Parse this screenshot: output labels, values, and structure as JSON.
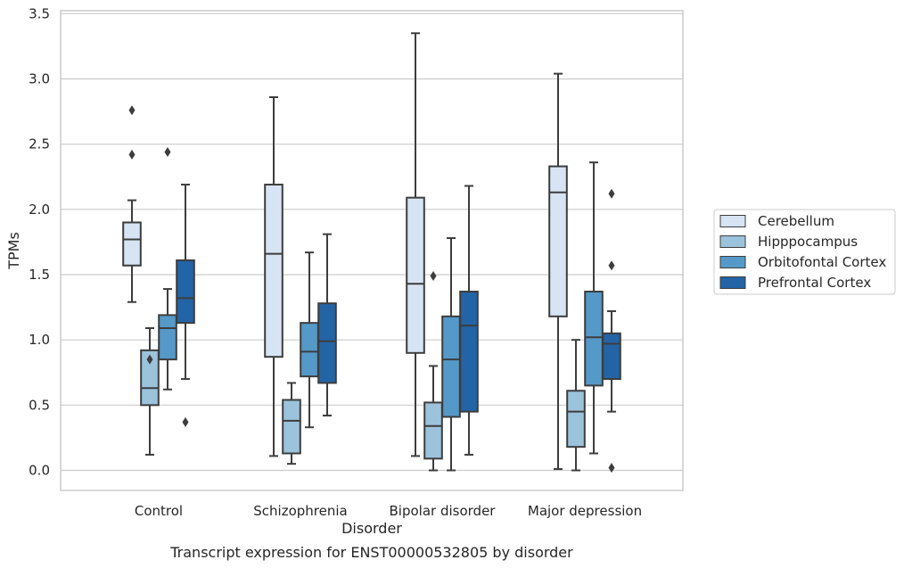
{
  "chart_data": {
    "type": "box",
    "xlabel": "Disorder",
    "ylabel": "TPMs",
    "caption": "Transcript expression for ENST00000532805 by disorder",
    "ylim": [
      -0.15,
      3.52
    ],
    "yticks": [
      "0.0",
      "0.5",
      "1.0",
      "1.5",
      "2.0",
      "2.5",
      "3.0",
      "3.5"
    ],
    "grid": "horizontal",
    "legend_position": "right",
    "categories": [
      "Control",
      "Schizophrenia",
      "Bipolar disorder",
      "Major depression"
    ],
    "series": [
      {
        "name": "Cerebellum",
        "color": "#d6e4f3",
        "boxes": [
          {
            "whisker_low": 1.29,
            "q1": 1.57,
            "median": 1.77,
            "q3": 1.9,
            "whisker_high": 2.07,
            "outliers": [
              2.76,
              2.42
            ]
          },
          {
            "whisker_low": 0.11,
            "q1": 0.87,
            "median": 1.66,
            "q3": 2.19,
            "whisker_high": 2.86,
            "outliers": []
          },
          {
            "whisker_low": 0.11,
            "q1": 0.9,
            "median": 1.43,
            "q3": 2.09,
            "whisker_high": 3.35,
            "outliers": []
          },
          {
            "whisker_low": 0.01,
            "q1": 1.18,
            "median": 2.13,
            "q3": 2.33,
            "whisker_high": 3.04,
            "outliers": []
          }
        ]
      },
      {
        "name": "Hipppocampus",
        "color": "#9cc3dc",
        "boxes": [
          {
            "whisker_low": 0.12,
            "q1": 0.5,
            "median": 0.63,
            "q3": 0.92,
            "whisker_high": 1.09,
            "outliers": [
              0.85
            ]
          },
          {
            "whisker_low": 0.05,
            "q1": 0.13,
            "median": 0.38,
            "q3": 0.54,
            "whisker_high": 0.67,
            "outliers": []
          },
          {
            "whisker_low": 0.0,
            "q1": 0.09,
            "median": 0.34,
            "q3": 0.52,
            "whisker_high": 0.8,
            "outliers": [
              1.49
            ]
          },
          {
            "whisker_low": 0.0,
            "q1": 0.18,
            "median": 0.45,
            "q3": 0.61,
            "whisker_high": 1.0,
            "outliers": []
          }
        ]
      },
      {
        "name": "Orbitofontal Cortex",
        "color": "#5599c8",
        "boxes": [
          {
            "whisker_low": 0.62,
            "q1": 0.85,
            "median": 1.09,
            "q3": 1.19,
            "whisker_high": 1.39,
            "outliers": [
              2.44
            ]
          },
          {
            "whisker_low": 0.33,
            "q1": 0.72,
            "median": 0.91,
            "q3": 1.13,
            "whisker_high": 1.67,
            "outliers": []
          },
          {
            "whisker_low": 0.0,
            "q1": 0.41,
            "median": 0.85,
            "q3": 1.18,
            "whisker_high": 1.78,
            "outliers": []
          },
          {
            "whisker_low": 0.13,
            "q1": 0.65,
            "median": 1.02,
            "q3": 1.37,
            "whisker_high": 2.36,
            "outliers": []
          }
        ]
      },
      {
        "name": "Prefrontal Cortex",
        "color": "#2364a6",
        "boxes": [
          {
            "whisker_low": 0.7,
            "q1": 1.13,
            "median": 1.32,
            "q3": 1.61,
            "whisker_high": 2.19,
            "outliers": [
              0.37
            ]
          },
          {
            "whisker_low": 0.42,
            "q1": 0.67,
            "median": 0.99,
            "q3": 1.28,
            "whisker_high": 1.81,
            "outliers": []
          },
          {
            "whisker_low": 0.12,
            "q1": 0.45,
            "median": 1.11,
            "q3": 1.37,
            "whisker_high": 2.18,
            "outliers": []
          },
          {
            "whisker_low": 0.45,
            "q1": 0.7,
            "median": 0.97,
            "q3": 1.05,
            "whisker_high": 1.22,
            "outliers": [
              2.12,
              1.57,
              0.02
            ]
          }
        ]
      }
    ]
  }
}
